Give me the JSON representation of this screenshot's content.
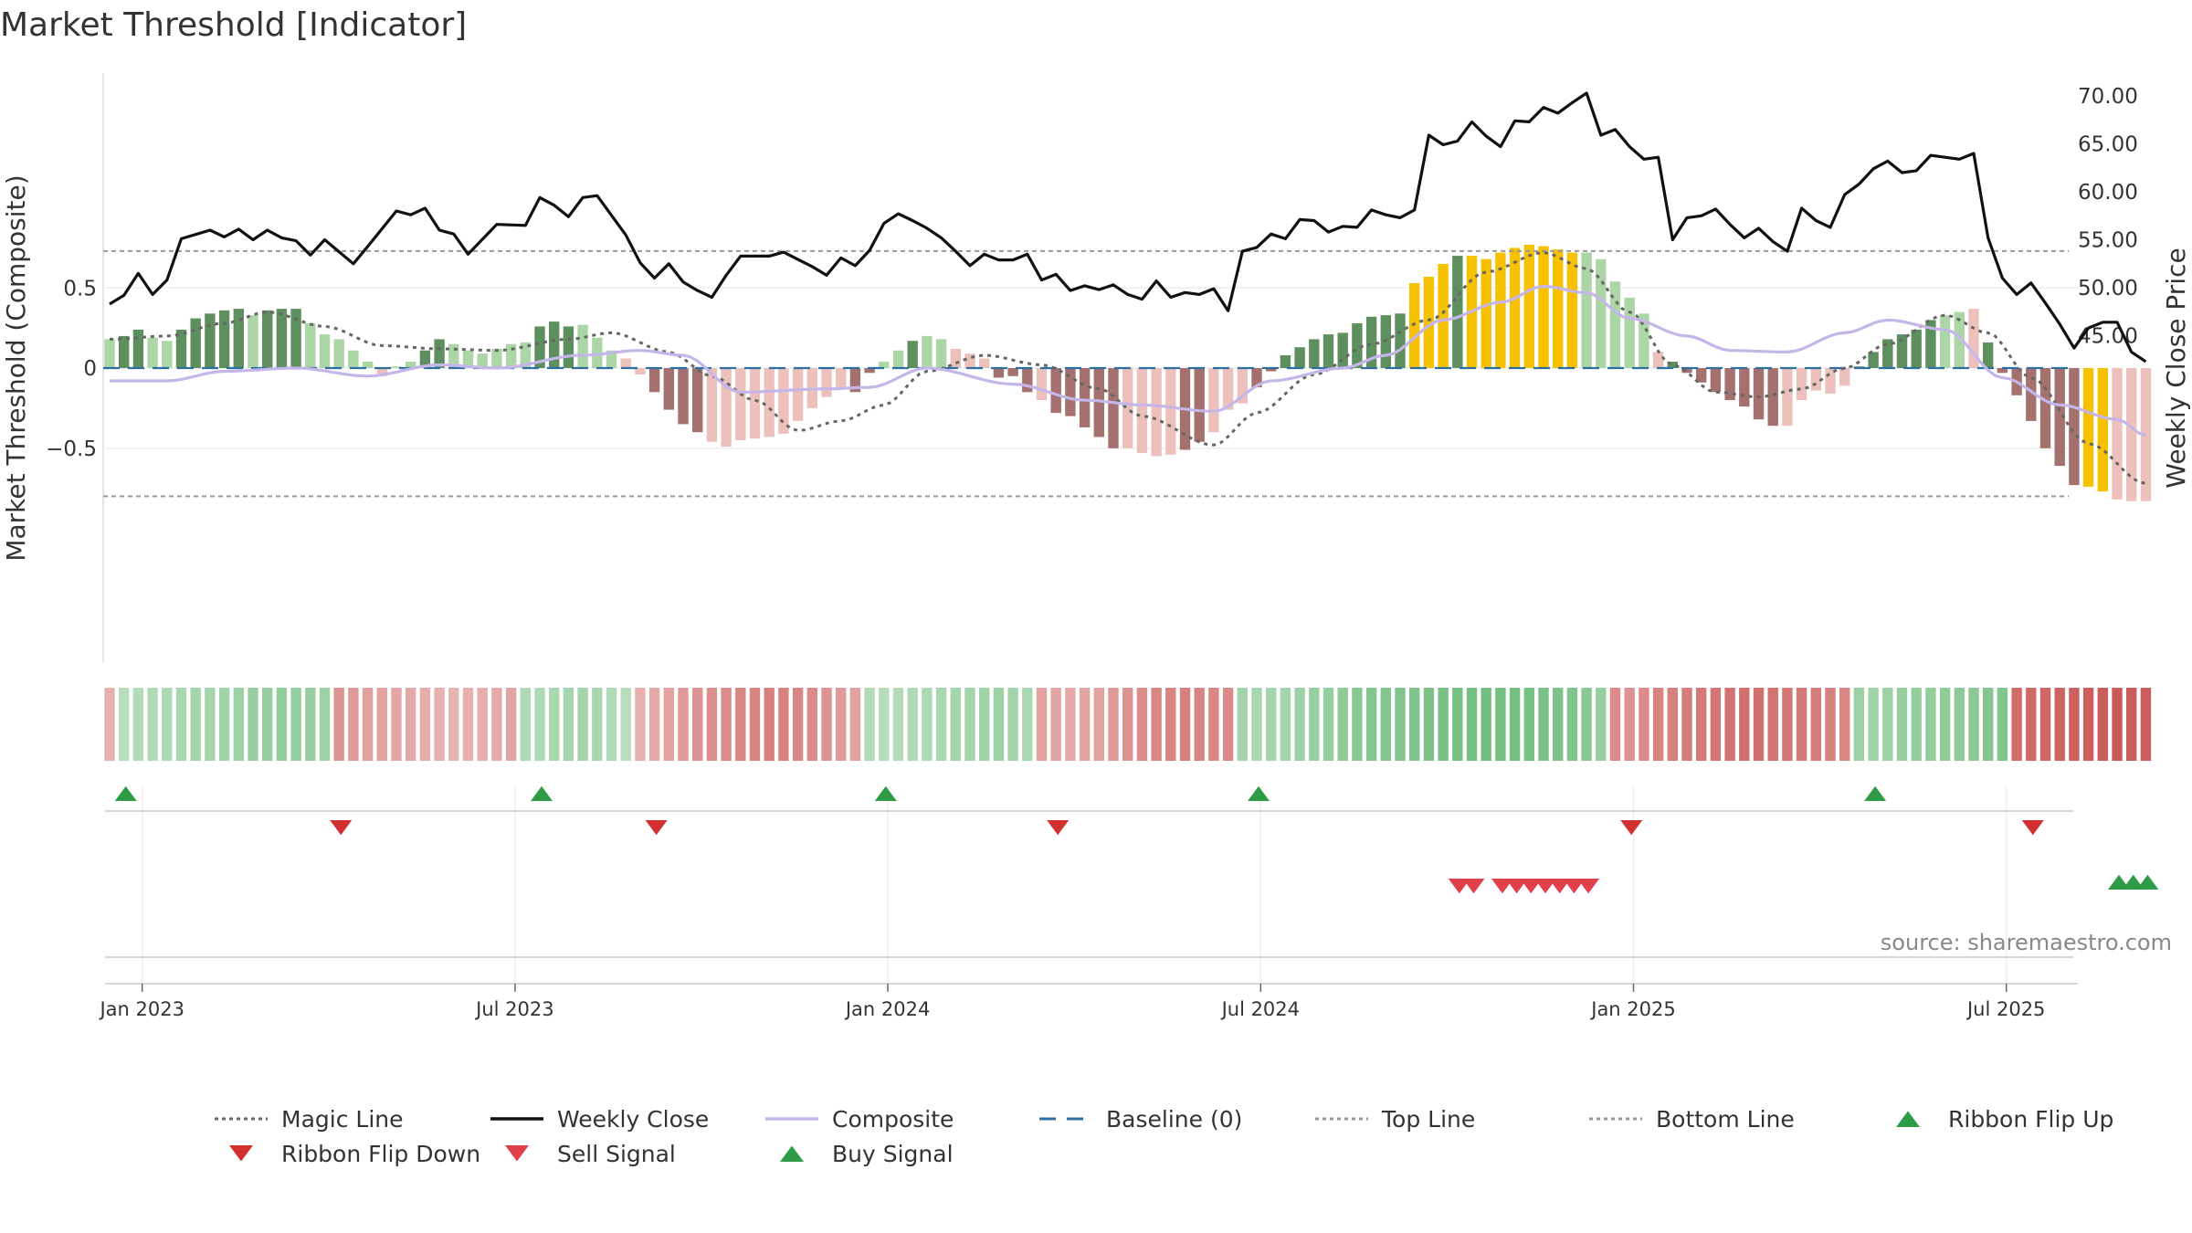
{
  "chart_data": {
    "type": "bar",
    "title": "Market Threshold [Indicator]",
    "ylabel": "Market Threshold (Composite)",
    "y2label": "Weekly Close Price",
    "source": "source: sharemaestro.com",
    "ylim": [
      -0.92,
      0.93
    ],
    "y2lim": [
      41.6,
      71.0
    ],
    "yticks": [
      {
        "v": 0.5,
        "label": "0.5"
      },
      {
        "v": 0,
        "label": "0"
      },
      {
        "v": -0.5,
        "label": "−0.5"
      }
    ],
    "y2ticks": [
      {
        "v": 70,
        "label": "70.00"
      },
      {
        "v": 65,
        "label": "65.00"
      },
      {
        "v": 60,
        "label": "60.00"
      },
      {
        "v": 55,
        "label": "55.00"
      },
      {
        "v": 50,
        "label": "50.00"
      },
      {
        "v": 45,
        "label": "45.00"
      }
    ],
    "xticks": [
      {
        "w": 1,
        "label": "Jan 2023"
      },
      {
        "w": 27,
        "label": "Jul 2023"
      },
      {
        "w": 53,
        "label": "Jan 2024"
      },
      {
        "w": 79,
        "label": "Jul 2024"
      },
      {
        "w": 105,
        "label": "Jan 2025"
      },
      {
        "w": 131,
        "label": "Jul 2025"
      }
    ],
    "num_weeks": 143,
    "top_line": 0.73,
    "bottom_line": -0.8,
    "baseline": 0,
    "composite_keypoints": [
      [
        0,
        -0.08
      ],
      [
        4,
        -0.08
      ],
      [
        8,
        -0.02
      ],
      [
        13,
        0.0
      ],
      [
        18,
        -0.05
      ],
      [
        23,
        0.02
      ],
      [
        27,
        0.0
      ],
      [
        33,
        0.08
      ],
      [
        37,
        0.11
      ],
      [
        40,
        0.08
      ],
      [
        44,
        -0.15
      ],
      [
        50,
        -0.13
      ],
      [
        53,
        -0.12
      ],
      [
        57,
        0.0
      ],
      [
        63,
        -0.1
      ],
      [
        68,
        -0.2
      ],
      [
        72,
        -0.23
      ],
      [
        77,
        -0.27
      ],
      [
        81,
        -0.08
      ],
      [
        86,
        0.0
      ],
      [
        89,
        0.08
      ],
      [
        93,
        0.3
      ],
      [
        97,
        0.41
      ],
      [
        100,
        0.51
      ],
      [
        103,
        0.47
      ],
      [
        106,
        0.31
      ],
      [
        110,
        0.2
      ],
      [
        113,
        0.11
      ],
      [
        117,
        0.1
      ],
      [
        121,
        0.22
      ],
      [
        124,
        0.3
      ],
      [
        128,
        0.24
      ],
      [
        132,
        -0.06
      ],
      [
        136,
        -0.23
      ],
      [
        140,
        -0.32
      ],
      [
        142,
        -0.42
      ]
    ],
    "magic_keypoints": [
      [
        0,
        0.18
      ],
      [
        4,
        0.2
      ],
      [
        8,
        0.28
      ],
      [
        11,
        0.35
      ],
      [
        15,
        0.26
      ],
      [
        19,
        0.14
      ],
      [
        23,
        0.12
      ],
      [
        27,
        0.11
      ],
      [
        32,
        0.18
      ],
      [
        35,
        0.22
      ],
      [
        39,
        0.1
      ],
      [
        42,
        -0.05
      ],
      [
        45,
        -0.2
      ],
      [
        48,
        -0.39
      ],
      [
        51,
        -0.33
      ],
      [
        54,
        -0.23
      ],
      [
        57,
        -0.02
      ],
      [
        61,
        0.08
      ],
      [
        65,
        0.02
      ],
      [
        69,
        -0.13
      ],
      [
        72,
        -0.3
      ],
      [
        77,
        -0.48
      ],
      [
        80,
        -0.28
      ],
      [
        84,
        -0.04
      ],
      [
        88,
        0.15
      ],
      [
        92,
        0.3
      ],
      [
        96,
        0.6
      ],
      [
        100,
        0.72
      ],
      [
        103,
        0.62
      ],
      [
        106,
        0.35
      ],
      [
        109,
        0.02
      ],
      [
        112,
        -0.15
      ],
      [
        115,
        -0.18
      ],
      [
        118,
        -0.13
      ],
      [
        121,
        0.0
      ],
      [
        124,
        0.15
      ],
      [
        128,
        0.33
      ],
      [
        131,
        0.22
      ],
      [
        134,
        -0.06
      ],
      [
        138,
        -0.47
      ],
      [
        142,
        -0.72
      ]
    ],
    "close_keypoints": [
      [
        0,
        48.3
      ],
      [
        1,
        49.2
      ],
      [
        2,
        51.5
      ],
      [
        3,
        49.3
      ],
      [
        4,
        50.8
      ],
      [
        5,
        55.1
      ],
      [
        7,
        56.0
      ],
      [
        8,
        55.3
      ],
      [
        9,
        56.1
      ],
      [
        10,
        55.0
      ],
      [
        11,
        56.0
      ],
      [
        12,
        55.2
      ],
      [
        13,
        54.9
      ],
      [
        14,
        53.4
      ],
      [
        15,
        55.0
      ],
      [
        17,
        52.5
      ],
      [
        18,
        54.3
      ],
      [
        20,
        58.0
      ],
      [
        21,
        57.6
      ],
      [
        22,
        58.3
      ],
      [
        23,
        56.0
      ],
      [
        24,
        55.6
      ],
      [
        25,
        53.5
      ],
      [
        27,
        56.6
      ],
      [
        29,
        56.5
      ],
      [
        30,
        59.4
      ],
      [
        31,
        58.6
      ],
      [
        32,
        57.4
      ],
      [
        33,
        59.4
      ],
      [
        34,
        59.6
      ],
      [
        36,
        55.5
      ],
      [
        37,
        52.6
      ],
      [
        38,
        51.0
      ],
      [
        39,
        52.5
      ],
      [
        40,
        50.6
      ],
      [
        41,
        49.7
      ],
      [
        42,
        49.0
      ],
      [
        43,
        51.3
      ],
      [
        44,
        53.3
      ],
      [
        46,
        53.3
      ],
      [
        47,
        53.7
      ],
      [
        49,
        52.2
      ],
      [
        50,
        51.3
      ],
      [
        51,
        53.1
      ],
      [
        52,
        52.3
      ],
      [
        53,
        53.9
      ],
      [
        54,
        56.7
      ],
      [
        55,
        57.7
      ],
      [
        56,
        57.0
      ],
      [
        57,
        56.2
      ],
      [
        58,
        55.2
      ],
      [
        59,
        53.8
      ],
      [
        60,
        52.3
      ],
      [
        61,
        53.5
      ],
      [
        62,
        52.9
      ],
      [
        63,
        52.9
      ],
      [
        64,
        53.5
      ],
      [
        65,
        50.8
      ],
      [
        66,
        51.4
      ],
      [
        67,
        49.7
      ],
      [
        68,
        50.2
      ],
      [
        69,
        49.8
      ],
      [
        70,
        50.3
      ],
      [
        71,
        49.3
      ],
      [
        72,
        48.8
      ],
      [
        73,
        50.7
      ],
      [
        74,
        49.0
      ],
      [
        75,
        49.5
      ],
      [
        76,
        49.3
      ],
      [
        77,
        49.9
      ],
      [
        78,
        47.6
      ],
      [
        79,
        53.8
      ],
      [
        80,
        54.2
      ],
      [
        81,
        55.6
      ],
      [
        82,
        55.1
      ],
      [
        83,
        57.1
      ],
      [
        84,
        57.0
      ],
      [
        85,
        55.8
      ],
      [
        86,
        56.4
      ],
      [
        87,
        56.3
      ],
      [
        88,
        58.1
      ],
      [
        89,
        57.6
      ],
      [
        90,
        57.3
      ],
      [
        91,
        58.1
      ],
      [
        92,
        65.9
      ],
      [
        93,
        64.9
      ],
      [
        94,
        65.3
      ],
      [
        95,
        67.3
      ],
      [
        96,
        65.8
      ],
      [
        97,
        64.7
      ],
      [
        98,
        67.4
      ],
      [
        99,
        67.3
      ],
      [
        100,
        68.8
      ],
      [
        101,
        68.2
      ],
      [
        102,
        69.3
      ],
      [
        103,
        70.3
      ],
      [
        104,
        65.9
      ],
      [
        105,
        66.5
      ],
      [
        106,
        64.7
      ],
      [
        107,
        63.4
      ],
      [
        108,
        63.6
      ],
      [
        109,
        55.0
      ],
      [
        110,
        57.3
      ],
      [
        111,
        57.5
      ],
      [
        112,
        58.2
      ],
      [
        113,
        56.6
      ],
      [
        114,
        55.2
      ],
      [
        115,
        56.2
      ],
      [
        116,
        54.8
      ],
      [
        117,
        53.8
      ],
      [
        118,
        58.3
      ],
      [
        119,
        57.0
      ],
      [
        120,
        56.3
      ],
      [
        121,
        59.7
      ],
      [
        122,
        60.8
      ],
      [
        123,
        62.4
      ],
      [
        124,
        63.2
      ],
      [
        125,
        62.0
      ],
      [
        126,
        62.2
      ],
      [
        127,
        63.8
      ],
      [
        128,
        63.6
      ],
      [
        129,
        63.4
      ],
      [
        130,
        64.0
      ],
      [
        131,
        55.2
      ],
      [
        132,
        51.0
      ],
      [
        133,
        49.3
      ],
      [
        134,
        50.5
      ],
      [
        135,
        48.4
      ],
      [
        136,
        46.2
      ],
      [
        137,
        43.7
      ],
      [
        138,
        45.8
      ],
      [
        139,
        46.4
      ],
      [
        140,
        46.4
      ],
      [
        141,
        43.3
      ],
      [
        142,
        42.3
      ]
    ],
    "composite_bars": [
      0.18,
      0.2,
      0.24,
      0.19,
      0.17,
      0.24,
      0.31,
      0.34,
      0.36,
      0.37,
      0.33,
      0.36,
      0.37,
      0.37,
      0.28,
      0.21,
      0.18,
      0.11,
      0.04,
      -0.05,
      0.01,
      0.04,
      0.11,
      0.18,
      0.15,
      0.11,
      0.09,
      0.12,
      0.15,
      0.16,
      0.26,
      0.29,
      0.26,
      0.27,
      0.19,
      0.11,
      0.06,
      -0.04,
      -0.15,
      -0.26,
      -0.35,
      -0.4,
      -0.46,
      -0.49,
      -0.45,
      -0.44,
      -0.43,
      -0.41,
      -0.33,
      -0.25,
      -0.18,
      -0.12,
      -0.15,
      -0.03,
      0.04,
      0.11,
      0.17,
      0.2,
      0.18,
      0.12,
      0.09,
      0.06,
      -0.06,
      -0.05,
      -0.15,
      -0.2,
      -0.28,
      -0.3,
      -0.37,
      -0.43,
      -0.5,
      -0.5,
      -0.53,
      -0.55,
      -0.54,
      -0.51,
      -0.46,
      -0.4,
      -0.26,
      -0.22,
      -0.12,
      -0.02,
      0.08,
      0.13,
      0.18,
      0.21,
      0.22,
      0.28,
      0.32,
      0.33,
      0.34,
      0.53,
      0.57,
      0.65,
      0.7,
      0.7,
      0.68,
      0.72,
      0.75,
      0.77,
      0.76,
      0.74,
      0.72,
      0.72,
      0.68,
      0.54,
      0.44,
      0.34,
      0.1,
      0.04,
      -0.03,
      -0.09,
      -0.15,
      -0.2,
      -0.24,
      -0.32,
      -0.36,
      -0.36,
      -0.2,
      -0.14,
      -0.16,
      -0.11,
      0.01,
      0.1,
      0.18,
      0.21,
      0.24,
      0.3,
      0.33,
      0.35,
      0.37,
      0.16,
      -0.03,
      -0.17,
      -0.33,
      -0.5,
      -0.61,
      -0.73,
      -0.74,
      -0.77,
      -0.82,
      -0.83,
      -0.83
    ],
    "bar_states": "LDDLLDDDDDLDDDLLLLLRLLDDLLLLLLDDDLLLRRDDDDRRRRRRRLLLDDLLDLLRRRDDDRDDDDDRRRRDDRLLDDDDDDDDDDDGGGDGGGGGGGGLLLLLRDDDDDDDDRRRLLDDDDDDLLRDDDDDDDGG",
    "ribbon_levels": [
      0.3,
      0.35,
      0.38,
      0.4,
      0.42,
      0.45,
      0.48,
      0.5,
      0.52,
      0.55,
      0.58,
      0.6,
      0.62,
      0.6,
      0.58,
      0.55,
      0.5,
      0.45,
      0.42,
      0.4,
      0.38,
      0.35,
      0.32,
      0.3,
      0.28,
      0.3,
      0.32,
      0.35,
      0.38,
      0.4,
      0.42,
      0.45,
      0.48,
      0.5,
      0.45,
      0.4,
      0.35,
      0.3,
      0.35,
      0.4,
      0.45,
      0.5,
      0.52,
      0.55,
      0.58,
      0.6,
      0.62,
      0.6,
      0.58,
      0.55,
      0.5,
      0.45,
      0.4,
      0.38,
      0.35,
      0.38,
      0.4,
      0.42,
      0.45,
      0.48,
      0.5,
      0.52,
      0.55,
      0.5,
      0.45,
      0.4,
      0.38,
      0.35,
      0.38,
      0.4,
      0.45,
      0.5,
      0.55,
      0.58,
      0.6,
      0.62,
      0.6,
      0.58,
      0.55,
      0.5,
      0.45,
      0.48,
      0.5,
      0.55,
      0.58,
      0.6,
      0.65,
      0.7,
      0.72,
      0.74,
      0.75,
      0.76,
      0.78,
      0.8,
      0.82,
      0.84,
      0.86,
      0.85,
      0.84,
      0.82,
      0.8,
      0.78,
      0.75,
      0.7,
      0.6,
      0.55,
      0.5,
      0.55,
      0.6,
      0.62,
      0.65,
      0.68,
      0.7,
      0.72,
      0.74,
      0.75,
      0.72,
      0.7,
      0.68,
      0.66,
      0.62,
      0.58,
      0.55,
      0.52,
      0.55,
      0.58,
      0.6,
      0.62,
      0.64,
      0.66,
      0.68,
      0.72,
      0.74,
      0.76,
      0.78,
      0.8,
      0.82,
      0.84,
      0.86,
      0.88,
      0.9,
      0.88,
      0.86
    ],
    "ribbon_signs": [
      {
        "from": 0,
        "to": 0,
        "sign": -1
      },
      {
        "from": 1,
        "to": 15,
        "sign": 1
      },
      {
        "from": 16,
        "to": 28,
        "sign": -1
      },
      {
        "from": 29,
        "to": 36,
        "sign": 1
      },
      {
        "from": 37,
        "to": 52,
        "sign": -1
      },
      {
        "from": 53,
        "to": 64,
        "sign": 1
      },
      {
        "from": 65,
        "to": 78,
        "sign": -1
      },
      {
        "from": 79,
        "to": 104,
        "sign": 1
      },
      {
        "from": 105,
        "to": 121,
        "sign": -1
      },
      {
        "from": 122,
        "to": 132,
        "sign": 1
      },
      {
        "from": 133,
        "to": 142,
        "sign": -1
      }
    ],
    "ribbon_flip_up": [
      1,
      30,
      54,
      80,
      123
    ],
    "ribbon_flip_down": [
      16,
      38,
      66,
      106,
      134
    ],
    "sell_signals": [
      94,
      95,
      97,
      98,
      99,
      100,
      101,
      102,
      103
    ],
    "buy_signals": [
      140,
      141,
      142
    ],
    "legend": [
      {
        "label": "Magic Line",
        "kind": "dotted",
        "color": "#666666"
      },
      {
        "label": "Weekly Close",
        "kind": "solid",
        "color": "#111111"
      },
      {
        "label": "Composite",
        "kind": "solid",
        "color": "#c5b6ea"
      },
      {
        "label": "Baseline (0)",
        "kind": "dashed",
        "color": "#2f6f9f"
      },
      {
        "label": "Top Line",
        "kind": "dotted",
        "color": "#999999"
      },
      {
        "label": "Bottom Line",
        "kind": "dotted",
        "color": "#999999"
      },
      {
        "label": "Ribbon Flip Up",
        "kind": "tri-up",
        "color": "#2e9c47"
      },
      {
        "label": "Ribbon Flip Down",
        "kind": "tri-down",
        "color": "#d22f2f"
      },
      {
        "label": "Sell Signal",
        "kind": "tri-down",
        "color": "#e0404a"
      },
      {
        "label": "Buy Signal",
        "kind": "tri-up",
        "color": "#2e9c47"
      }
    ],
    "colors": {
      "bull_dark": "#5e8f5e",
      "bull_light": "#acd6a6",
      "bear_dark": "#a5716f",
      "bear_light": "#ecc1bb",
      "gold": "#f5c100",
      "close": "#111111",
      "composite": "#c5b6ea",
      "magic": "#666666",
      "baseline": "#2f6f9f",
      "threshold": "#999999"
    }
  }
}
